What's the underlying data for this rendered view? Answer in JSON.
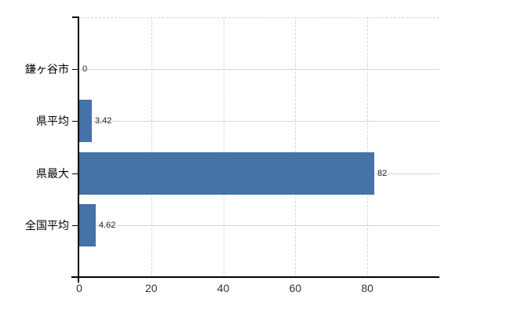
{
  "chart_data": {
    "type": "bar",
    "orientation": "horizontal",
    "title": "",
    "xlabel": "",
    "ylabel": "",
    "categories": [
      "鎌ヶ谷市",
      "県平均",
      "県最大",
      "全国平均"
    ],
    "values": [
      0,
      3.42,
      82,
      4.62
    ],
    "value_labels": [
      "0",
      "3.42",
      "82",
      "4.62"
    ],
    "x_ticks": [
      0,
      20,
      40,
      60,
      80
    ],
    "x_tick_labels": [
      "0",
      "20",
      "40",
      "60",
      "80"
    ],
    "xlim": [
      0,
      100
    ],
    "grid": true,
    "legend": false,
    "colors": {
      "bar": "#4572A7",
      "vertical_grid": "#d6d6d6",
      "horizontal_grid": "#d2d8d2",
      "axis": "#000000",
      "value_label": "#222222",
      "tick_label": "#333333",
      "category_label": "#000000",
      "background": "#ffffff"
    }
  }
}
